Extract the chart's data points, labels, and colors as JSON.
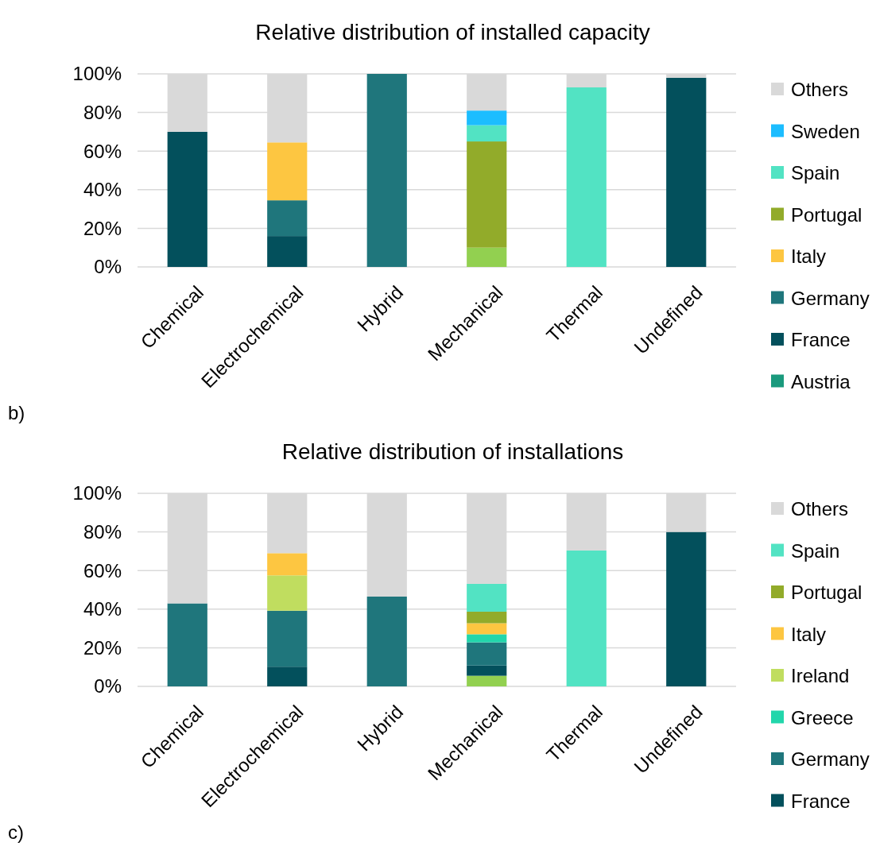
{
  "chart_data": [
    {
      "type": "bar",
      "title": "Relative distribution of installed capacity",
      "stacked": true,
      "categories": [
        "Chemical",
        "Electrochemical",
        "Hybrid",
        "Mechanical",
        "Thermal",
        "Undefined"
      ],
      "ylim": [
        0,
        100
      ],
      "yticks": [
        {
          "value": 0,
          "label": "0%"
        },
        {
          "value": 20,
          "label": "20%"
        },
        {
          "value": 40,
          "label": "40%"
        },
        {
          "value": 60,
          "label": "60%"
        },
        {
          "value": 80,
          "label": "80%"
        },
        {
          "value": 100,
          "label": "100%"
        }
      ],
      "grid": "y",
      "legend": "right",
      "annotations": [
        "b)"
      ],
      "series": [
        {
          "color": "#92d050",
          "values": [
            null,
            null,
            null,
            10,
            null,
            null
          ]
        },
        {
          "name": "Austria",
          "color": "#1a9a7d",
          "values": [
            null,
            null,
            null,
            null,
            null,
            null
          ]
        },
        {
          "name": "France",
          "color": "#03505c",
          "values": [
            70,
            16,
            null,
            null,
            null,
            98
          ]
        },
        {
          "name": "Germany",
          "color": "#1f767c",
          "values": [
            null,
            18.5,
            100,
            null,
            null,
            null
          ]
        },
        {
          "name": "Italy",
          "color": "#fdc641",
          "values": [
            null,
            30,
            null,
            null,
            null,
            null
          ]
        },
        {
          "name": "Portugal",
          "color": "#92ab2a",
          "values": [
            null,
            null,
            null,
            55,
            null,
            null
          ]
        },
        {
          "name": "Spain",
          "color": "#52e3c3",
          "values": [
            null,
            null,
            null,
            8.4,
            93,
            null
          ]
        },
        {
          "name": "Sweden",
          "color": "#1cbdff",
          "values": [
            null,
            null,
            null,
            7.6,
            null,
            null
          ]
        },
        {
          "name": "Others",
          "color": "#d9d9d9",
          "values": [
            30,
            35.5,
            null,
            19,
            7,
            2
          ]
        }
      ]
    },
    {
      "type": "bar",
      "title": "Relative distribution of installations",
      "stacked": true,
      "categories": [
        "Chemical",
        "Electrochemical",
        "Hybrid",
        "Mechanical",
        "Thermal",
        "Undefined"
      ],
      "ylim": [
        0,
        100
      ],
      "yticks": [
        {
          "value": 0,
          "label": "0%"
        },
        {
          "value": 20,
          "label": "20%"
        },
        {
          "value": 40,
          "label": "40%"
        },
        {
          "value": 60,
          "label": "60%"
        },
        {
          "value": 80,
          "label": "80%"
        },
        {
          "value": 100,
          "label": "100%"
        }
      ],
      "grid": "y",
      "legend": "right",
      "annotations": [
        "c)"
      ],
      "series": [
        {
          "color": "#92d050",
          "values": [
            null,
            null,
            null,
            5.5,
            null,
            null
          ]
        },
        {
          "name": "France",
          "color": "#03505c",
          "values": [
            null,
            10.2,
            null,
            5.3,
            null,
            80
          ]
        },
        {
          "name": "Germany",
          "color": "#1f767c",
          "values": [
            43,
            29,
            46.5,
            12,
            null,
            null
          ]
        },
        {
          "name": "Greece",
          "color": "#22d6ab",
          "values": [
            null,
            null,
            null,
            4.2,
            null,
            null
          ]
        },
        {
          "name": "Ireland",
          "color": "#c0dd5f",
          "values": [
            null,
            18.3,
            null,
            null,
            null,
            null
          ]
        },
        {
          "name": "Italy",
          "color": "#fdc641",
          "values": [
            null,
            11.5,
            null,
            5.7,
            null,
            null
          ]
        },
        {
          "name": "Portugal",
          "color": "#92ab2a",
          "values": [
            null,
            null,
            null,
            6,
            null,
            null
          ]
        },
        {
          "name": "Spain",
          "color": "#52e3c3",
          "values": [
            null,
            null,
            null,
            14.4,
            70.4,
            null
          ]
        },
        {
          "name": "Others",
          "color": "#d9d9d9",
          "values": [
            57,
            31,
            53.5,
            46.9,
            29.6,
            20
          ]
        }
      ]
    }
  ]
}
